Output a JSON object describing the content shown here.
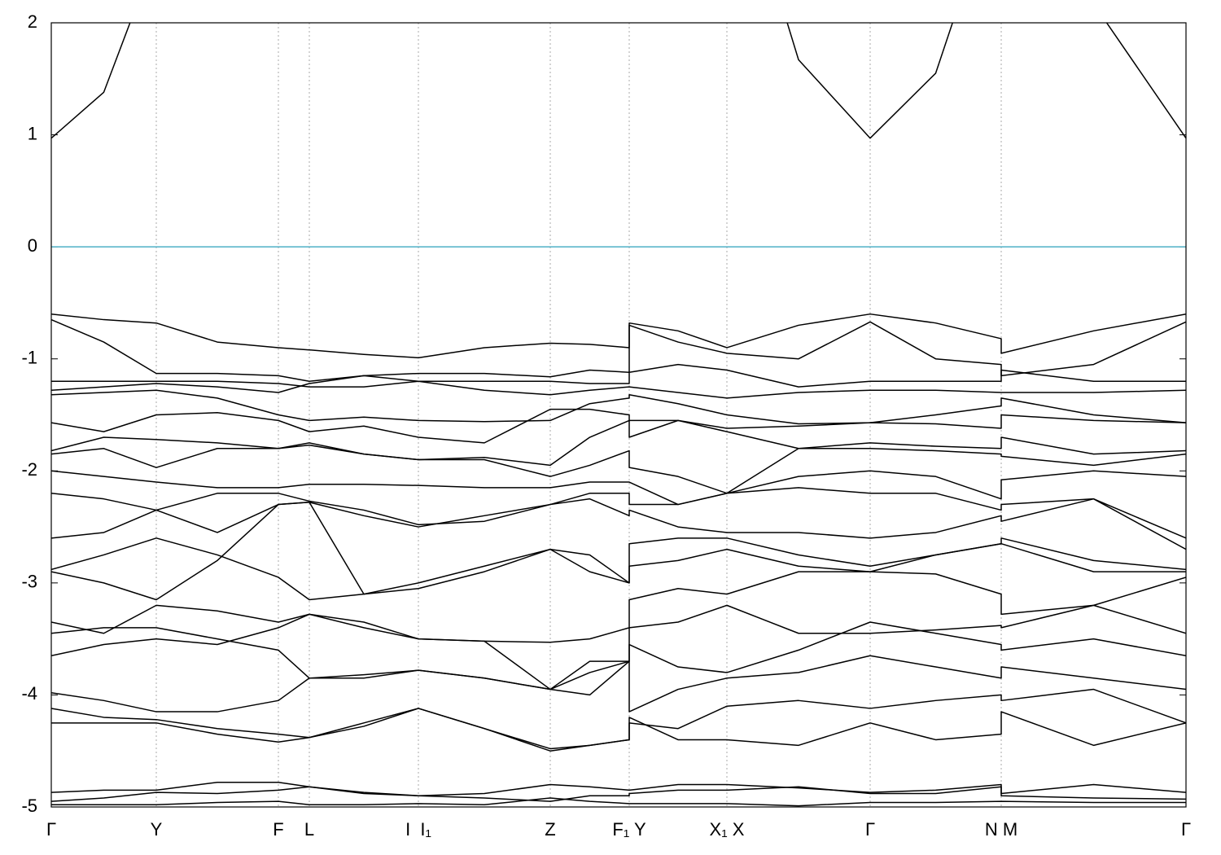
{
  "chart_data": {
    "type": "line",
    "x": [
      0,
      0.645,
      1.29,
      2.04,
      2.79,
      3.17,
      3.84,
      4.51,
      5.32,
      6.13,
      6.615,
      7.1,
      7.1,
      7.7,
      8.3,
      9.18,
      10.06,
      10.865,
      11.67,
      11.67,
      12.805,
      13.94
    ],
    "xlim": [
      0,
      13.94
    ],
    "xticks": [
      {
        "value": 0,
        "label": "Γ"
      },
      {
        "value": 1.29,
        "label": "Y"
      },
      {
        "value": 2.79,
        "label": "F"
      },
      {
        "value": 3.17,
        "label": "L"
      },
      {
        "value": 4.51,
        "label": "I  I₁"
      },
      {
        "value": 6.13,
        "label": "Z"
      },
      {
        "value": 7.1,
        "label": "F₁ Y"
      },
      {
        "value": 8.3,
        "label": "X₁ X"
      },
      {
        "value": 10.06,
        "label": "Γ"
      },
      {
        "value": 11.67,
        "label": "N M"
      },
      {
        "value": 13.94,
        "label": "Γ"
      }
    ],
    "ylim": [
      -5,
      2
    ],
    "yticks": [
      -5,
      -4,
      -3,
      -2,
      -1,
      0,
      1,
      2
    ],
    "grid": true,
    "fermi_level": 0,
    "fermi_color": "#4fb0c6",
    "series": [
      {
        "color": "#000000",
        "values": [
          0.97,
          1.38,
          2.62,
          null,
          null,
          null,
          null,
          null,
          null,
          null,
          null,
          null,
          null,
          null,
          3.76,
          1.67,
          0.97,
          1.55,
          3.3,
          null,
          2.17,
          0.97
        ]
      },
      {
        "color": "#000000",
        "values": [
          -0.6,
          -0.65,
          -0.68,
          -0.85,
          -0.9,
          -0.92,
          -0.96,
          -0.99,
          -0.9,
          -0.86,
          -0.87,
          -0.9,
          -0.68,
          -0.75,
          -0.9,
          -0.7,
          -0.6,
          -0.68,
          -0.82,
          -0.95,
          -0.75,
          -0.6
        ]
      },
      {
        "color": "#000000",
        "values": [
          -0.65,
          -0.85,
          -1.13,
          -1.13,
          -1.15,
          -1.2,
          -1.15,
          -1.13,
          -1.13,
          -1.16,
          -1.1,
          -1.12,
          -0.7,
          -0.85,
          -0.95,
          -1.0,
          -0.67,
          -1.0,
          -1.05,
          -1.15,
          -1.05,
          -0.67
        ]
      },
      {
        "color": "#000000",
        "values": [
          -1.2,
          -1.2,
          -1.2,
          -1.2,
          -1.22,
          -1.25,
          -1.25,
          -1.2,
          -1.2,
          -1.2,
          -1.22,
          -1.22,
          -1.12,
          -1.05,
          -1.1,
          -1.25,
          -1.2,
          -1.2,
          -1.2,
          -1.1,
          -1.2,
          -1.2
        ]
      },
      {
        "color": "#000000",
        "values": [
          -1.28,
          -1.25,
          -1.22,
          -1.25,
          -1.3,
          -1.22,
          -1.15,
          -1.2,
          -1.28,
          -1.32,
          -1.28,
          -1.25,
          -1.25,
          -1.3,
          -1.35,
          -1.3,
          -1.28,
          -1.28,
          -1.3,
          -1.3,
          -1.3,
          -1.28
        ]
      },
      {
        "color": "#000000",
        "values": [
          -1.32,
          -1.3,
          -1.28,
          -1.35,
          -1.5,
          -1.55,
          -1.52,
          -1.55,
          -1.56,
          -1.55,
          -1.4,
          -1.35,
          -1.32,
          -1.4,
          -1.5,
          -1.58,
          -1.57,
          -1.5,
          -1.42,
          -1.35,
          -1.5,
          -1.57
        ]
      },
      {
        "color": "#000000",
        "values": [
          -1.57,
          -1.65,
          -1.5,
          -1.48,
          -1.55,
          -1.65,
          -1.6,
          -1.7,
          -1.75,
          -1.45,
          -1.45,
          -1.5,
          -1.55,
          -1.55,
          -1.62,
          -1.6,
          -1.57,
          -1.58,
          -1.62,
          -1.5,
          -1.55,
          -1.57
        ]
      },
      {
        "color": "#000000",
        "values": [
          -1.82,
          -1.7,
          -1.72,
          -1.75,
          -1.8,
          -1.75,
          -1.85,
          -1.9,
          -1.88,
          -1.95,
          -1.7,
          -1.55,
          -1.7,
          -1.55,
          -1.65,
          -1.8,
          -1.75,
          -1.78,
          -1.8,
          -1.7,
          -1.85,
          -1.82
        ]
      },
      {
        "color": "#000000",
        "values": [
          -1.85,
          -1.8,
          -1.97,
          -1.8,
          -1.8,
          -1.77,
          -1.85,
          -1.9,
          -1.9,
          -2.05,
          -1.95,
          -1.82,
          -1.97,
          -2.05,
          -2.2,
          -1.8,
          -1.8,
          -1.82,
          -1.85,
          -1.87,
          -1.95,
          -1.85
        ]
      },
      {
        "color": "#000000",
        "values": [
          -2.0,
          -2.05,
          -2.1,
          -2.15,
          -2.15,
          -2.12,
          -2.12,
          -2.13,
          -2.15,
          -2.15,
          -2.1,
          -2.1,
          -2.1,
          -2.3,
          -2.2,
          -2.05,
          -2.0,
          -2.05,
          -2.25,
          -2.08,
          -2.0,
          -2.05
        ]
      },
      {
        "color": "#000000",
        "values": [
          -2.2,
          -2.25,
          -2.35,
          -2.2,
          -2.2,
          -2.27,
          -2.35,
          -2.48,
          -2.45,
          -2.3,
          -2.2,
          -2.2,
          -2.3,
          -2.3,
          -2.2,
          -2.15,
          -2.2,
          -2.2,
          -2.35,
          -2.3,
          -2.25,
          -2.6
        ]
      },
      {
        "color": "#000000",
        "values": [
          -2.6,
          -2.55,
          -2.35,
          -2.55,
          -2.3,
          -2.28,
          -2.4,
          -2.5,
          -2.4,
          -2.3,
          -2.25,
          -2.4,
          -2.35,
          -2.5,
          -2.55,
          -2.55,
          -2.6,
          -2.55,
          -2.4,
          -2.45,
          -2.25,
          -2.7
        ]
      },
      {
        "color": "#000000",
        "values": [
          -2.88,
          -2.75,
          -2.6,
          -2.75,
          -2.95,
          -3.15,
          -3.1,
          -3.0,
          -2.85,
          -2.7,
          -2.75,
          -3.0,
          -2.65,
          -2.6,
          -2.6,
          -2.75,
          -2.85,
          -2.75,
          -2.65,
          -2.6,
          -2.8,
          -2.88
        ]
      },
      {
        "color": "#000000",
        "values": [
          -2.9,
          -3.0,
          -3.15,
          -2.8,
          -2.3,
          -2.28,
          -3.1,
          -3.05,
          -2.9,
          -2.7,
          -2.9,
          -3.0,
          -2.85,
          -2.8,
          -2.7,
          -2.85,
          -2.9,
          -2.75,
          -2.65,
          -2.65,
          -2.9,
          -2.9
        ]
      },
      {
        "color": "#000000",
        "values": [
          -3.35,
          -3.45,
          -3.2,
          -3.25,
          -3.35,
          -3.28,
          -3.4,
          -3.5,
          -3.52,
          -3.53,
          -3.5,
          -3.4,
          -3.15,
          -3.05,
          -3.1,
          -2.9,
          -2.9,
          -2.92,
          -3.1,
          -3.28,
          -3.2,
          -2.95
        ]
      },
      {
        "color": "#000000",
        "values": [
          -3.45,
          -3.4,
          -3.4,
          -3.5,
          -3.6,
          -3.85,
          -3.85,
          -3.78,
          -3.85,
          -3.95,
          -3.8,
          -3.7,
          -3.4,
          -3.35,
          -3.2,
          -3.45,
          -3.45,
          -3.42,
          -3.38,
          -3.4,
          -3.2,
          -3.45
        ]
      },
      {
        "color": "#000000",
        "values": [
          -3.65,
          -3.55,
          -3.5,
          -3.55,
          -3.4,
          -3.28,
          -3.35,
          -3.5,
          -3.52,
          -3.95,
          -3.7,
          -3.7,
          -3.55,
          -3.75,
          -3.8,
          -3.6,
          -3.35,
          -3.45,
          -3.55,
          -3.6,
          -3.5,
          -3.65
        ]
      },
      {
        "color": "#000000",
        "values": [
          -3.98,
          -4.05,
          -4.15,
          -4.15,
          -4.05,
          -3.85,
          -3.82,
          -3.78,
          -3.85,
          -3.95,
          -4.0,
          -3.7,
          -4.15,
          -3.95,
          -3.85,
          -3.8,
          -3.65,
          -3.75,
          -3.85,
          -3.75,
          -3.85,
          -3.95
        ]
      },
      {
        "color": "#000000",
        "values": [
          -4.12,
          -4.2,
          -4.22,
          -4.3,
          -4.35,
          -4.38,
          -4.28,
          -4.12,
          -4.3,
          -4.5,
          -4.45,
          -4.4,
          -4.25,
          -4.3,
          -4.1,
          -4.05,
          -4.12,
          -4.05,
          -4.0,
          -4.05,
          -3.95,
          -4.25
        ]
      },
      {
        "color": "#000000",
        "values": [
          -4.25,
          -4.25,
          -4.25,
          -4.35,
          -4.42,
          -4.38,
          -4.25,
          -4.12,
          -4.3,
          -4.48,
          -4.45,
          -4.4,
          -4.2,
          -4.4,
          -4.4,
          -4.45,
          -4.25,
          -4.4,
          -4.35,
          -4.15,
          -4.45,
          -4.25
        ]
      },
      {
        "color": "#000000",
        "values": [
          -4.87,
          -4.85,
          -4.85,
          -4.78,
          -4.78,
          -4.82,
          -4.87,
          -4.9,
          -4.88,
          -4.8,
          -4.82,
          -4.85,
          -4.85,
          -4.8,
          -4.8,
          -4.83,
          -4.87,
          -4.85,
          -4.8,
          -4.88,
          -4.8,
          -4.87
        ]
      },
      {
        "color": "#000000",
        "values": [
          -4.95,
          -4.92,
          -4.87,
          -4.88,
          -4.85,
          -4.82,
          -4.88,
          -4.9,
          -4.92,
          -4.95,
          -4.9,
          -4.9,
          -4.88,
          -4.85,
          -4.85,
          -4.82,
          -4.88,
          -4.88,
          -4.82,
          -4.9,
          -4.92,
          -4.93
        ]
      },
      {
        "color": "#000000",
        "values": [
          -4.98,
          -4.98,
          -4.98,
          -4.96,
          -4.95,
          -4.98,
          -4.98,
          -4.97,
          -4.98,
          -4.92,
          -4.95,
          -4.97,
          -4.97,
          -4.97,
          -4.97,
          -4.99,
          -4.96,
          -4.96,
          -4.95,
          -4.95,
          -4.96,
          -4.96
        ]
      }
    ]
  }
}
